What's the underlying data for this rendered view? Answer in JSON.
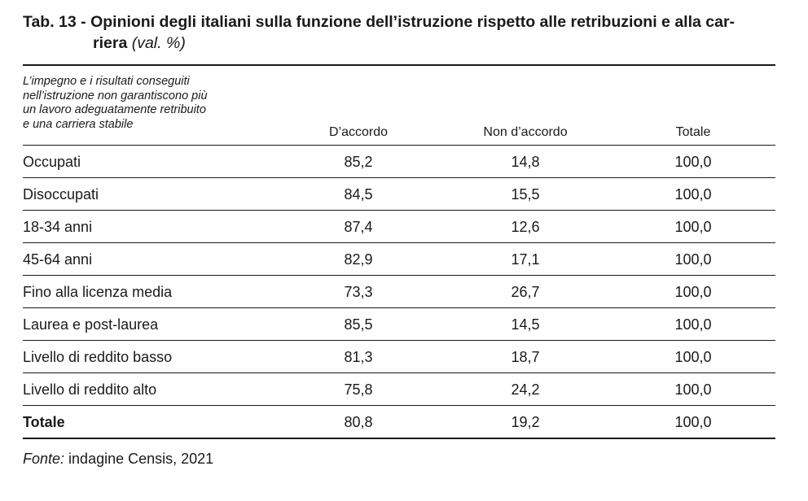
{
  "title": {
    "line1": "Tab. 13 - Opinioni degli italiani sulla funzione dell’istruzione rispetto alle retribuzioni e alla car-",
    "line2": "riera",
    "unit": "(val. %)"
  },
  "header": {
    "description_lines": [
      "L’impegno e i risultati conseguiti",
      "nell’istruzione non garantiscono più",
      "un lavoro adeguatamente retribuito",
      "e una carriera stabile"
    ],
    "columns": [
      "D’accordo",
      "Non d’accordo",
      "Totale"
    ]
  },
  "rows": [
    {
      "label": "Occupati",
      "values": [
        "85,2",
        "14,8",
        "100,0"
      ]
    },
    {
      "label": "Disoccupati",
      "values": [
        "84,5",
        "15,5",
        "100,0"
      ]
    },
    {
      "label": "18-34 anni",
      "values": [
        "87,4",
        "12,6",
        "100,0"
      ]
    },
    {
      "label": "45-64 anni",
      "values": [
        "82,9",
        "17,1",
        "100,0"
      ]
    },
    {
      "label": "Fino alla licenza media",
      "values": [
        "73,3",
        "26,7",
        "100,0"
      ]
    },
    {
      "label": "Laurea e post-laurea",
      "values": [
        "85,5",
        "14,5",
        "100,0"
      ]
    },
    {
      "label": "Livello di reddito basso",
      "values": [
        "81,3",
        "18,7",
        "100,0"
      ]
    },
    {
      "label": "Livello di reddito alto",
      "values": [
        "75,8",
        "24,2",
        "100,0"
      ]
    }
  ],
  "total": {
    "label": "Totale",
    "values": [
      "80,8",
      "19,2",
      "100,0"
    ]
  },
  "source": {
    "label": "Fonte:",
    "text": "indagine Censis, 2021"
  }
}
